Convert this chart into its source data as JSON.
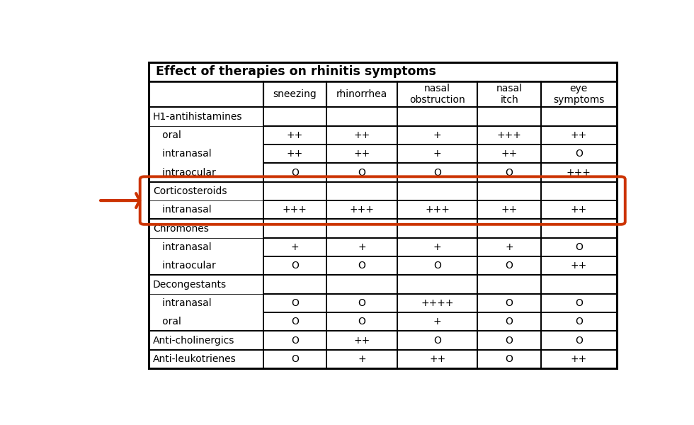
{
  "title": "Effect of therapies on rhinitis symptoms",
  "col_headers": [
    "",
    "sneezing",
    "rhinorrhea",
    "nasal\nobstruction",
    "nasal\nitch",
    "eye\nsymptoms"
  ],
  "rows": [
    {
      "label": "H1-antihistamines",
      "subrows": [
        {
          "sublabel": "   oral",
          "values": [
            "++",
            "++",
            "+",
            "+++",
            "++"
          ]
        },
        {
          "sublabel": "   intranasal",
          "values": [
            "++",
            "++",
            "+",
            "++",
            "O"
          ]
        },
        {
          "sublabel": "   intraocular",
          "values": [
            "O",
            "O",
            "O",
            "O",
            "+++"
          ]
        }
      ],
      "highlight": false
    },
    {
      "label": "Corticosteroids",
      "subrows": [
        {
          "sublabel": "   intranasal",
          "values": [
            "+++",
            "+++",
            "+++",
            "++",
            "++"
          ]
        }
      ],
      "highlight": true
    },
    {
      "label": "Chromones",
      "subrows": [
        {
          "sublabel": "   intranasal",
          "values": [
            "+",
            "+",
            "+",
            "+",
            "O"
          ]
        },
        {
          "sublabel": "   intraocular",
          "values": [
            "O",
            "O",
            "O",
            "O",
            "++"
          ]
        }
      ],
      "highlight": false
    },
    {
      "label": "Decongestants",
      "subrows": [
        {
          "sublabel": "   intranasal",
          "values": [
            "O",
            "O",
            "++++",
            "O",
            "O"
          ]
        },
        {
          "sublabel": "   oral",
          "values": [
            "O",
            "O",
            "+",
            "O",
            "O"
          ]
        }
      ],
      "highlight": false
    },
    {
      "label": "Anti-cholinergics",
      "subrows": [],
      "solo_values": [
        "O",
        "++",
        "O",
        "O",
        "O"
      ],
      "highlight": false
    },
    {
      "label": "Anti-leukotrienes",
      "subrows": [],
      "solo_values": [
        "O",
        "+",
        "++",
        "O",
        "++"
      ],
      "highlight": false
    }
  ],
  "highlight_color": "#cc3300",
  "arrow_color": "#cc3300",
  "bg_color": "#ffffff",
  "title_fontsize": 12.5,
  "header_fontsize": 10,
  "cell_fontsize": 10,
  "label_fontsize": 10,
  "sublabel_fontsize": 10
}
